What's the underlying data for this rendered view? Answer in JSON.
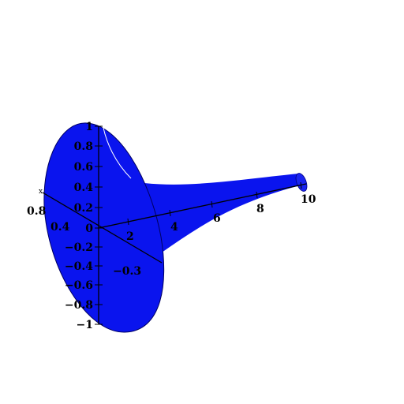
{
  "chart_data": {
    "type": "surface3d",
    "surface": "horn of revolution about the x-axis",
    "surface_color": "#0a14ee",
    "edge_color": "#000080",
    "x_axis": {
      "range": [
        0,
        10
      ],
      "tick_labels": [
        "2",
        "4",
        "6",
        "8",
        "10"
      ]
    },
    "z_axis": {
      "range": [
        -1,
        1
      ],
      "tick_labels": [
        "1",
        "0.8",
        "0.6",
        "0.4",
        "0.2",
        "0",
        "−0.2",
        "−0.4",
        "−0.6",
        "−0.8",
        "−1"
      ]
    },
    "y_axis": {
      "tick_labels": [
        "0.8",
        "0.4",
        "−0.3"
      ],
      "end_marker": "x"
    }
  }
}
